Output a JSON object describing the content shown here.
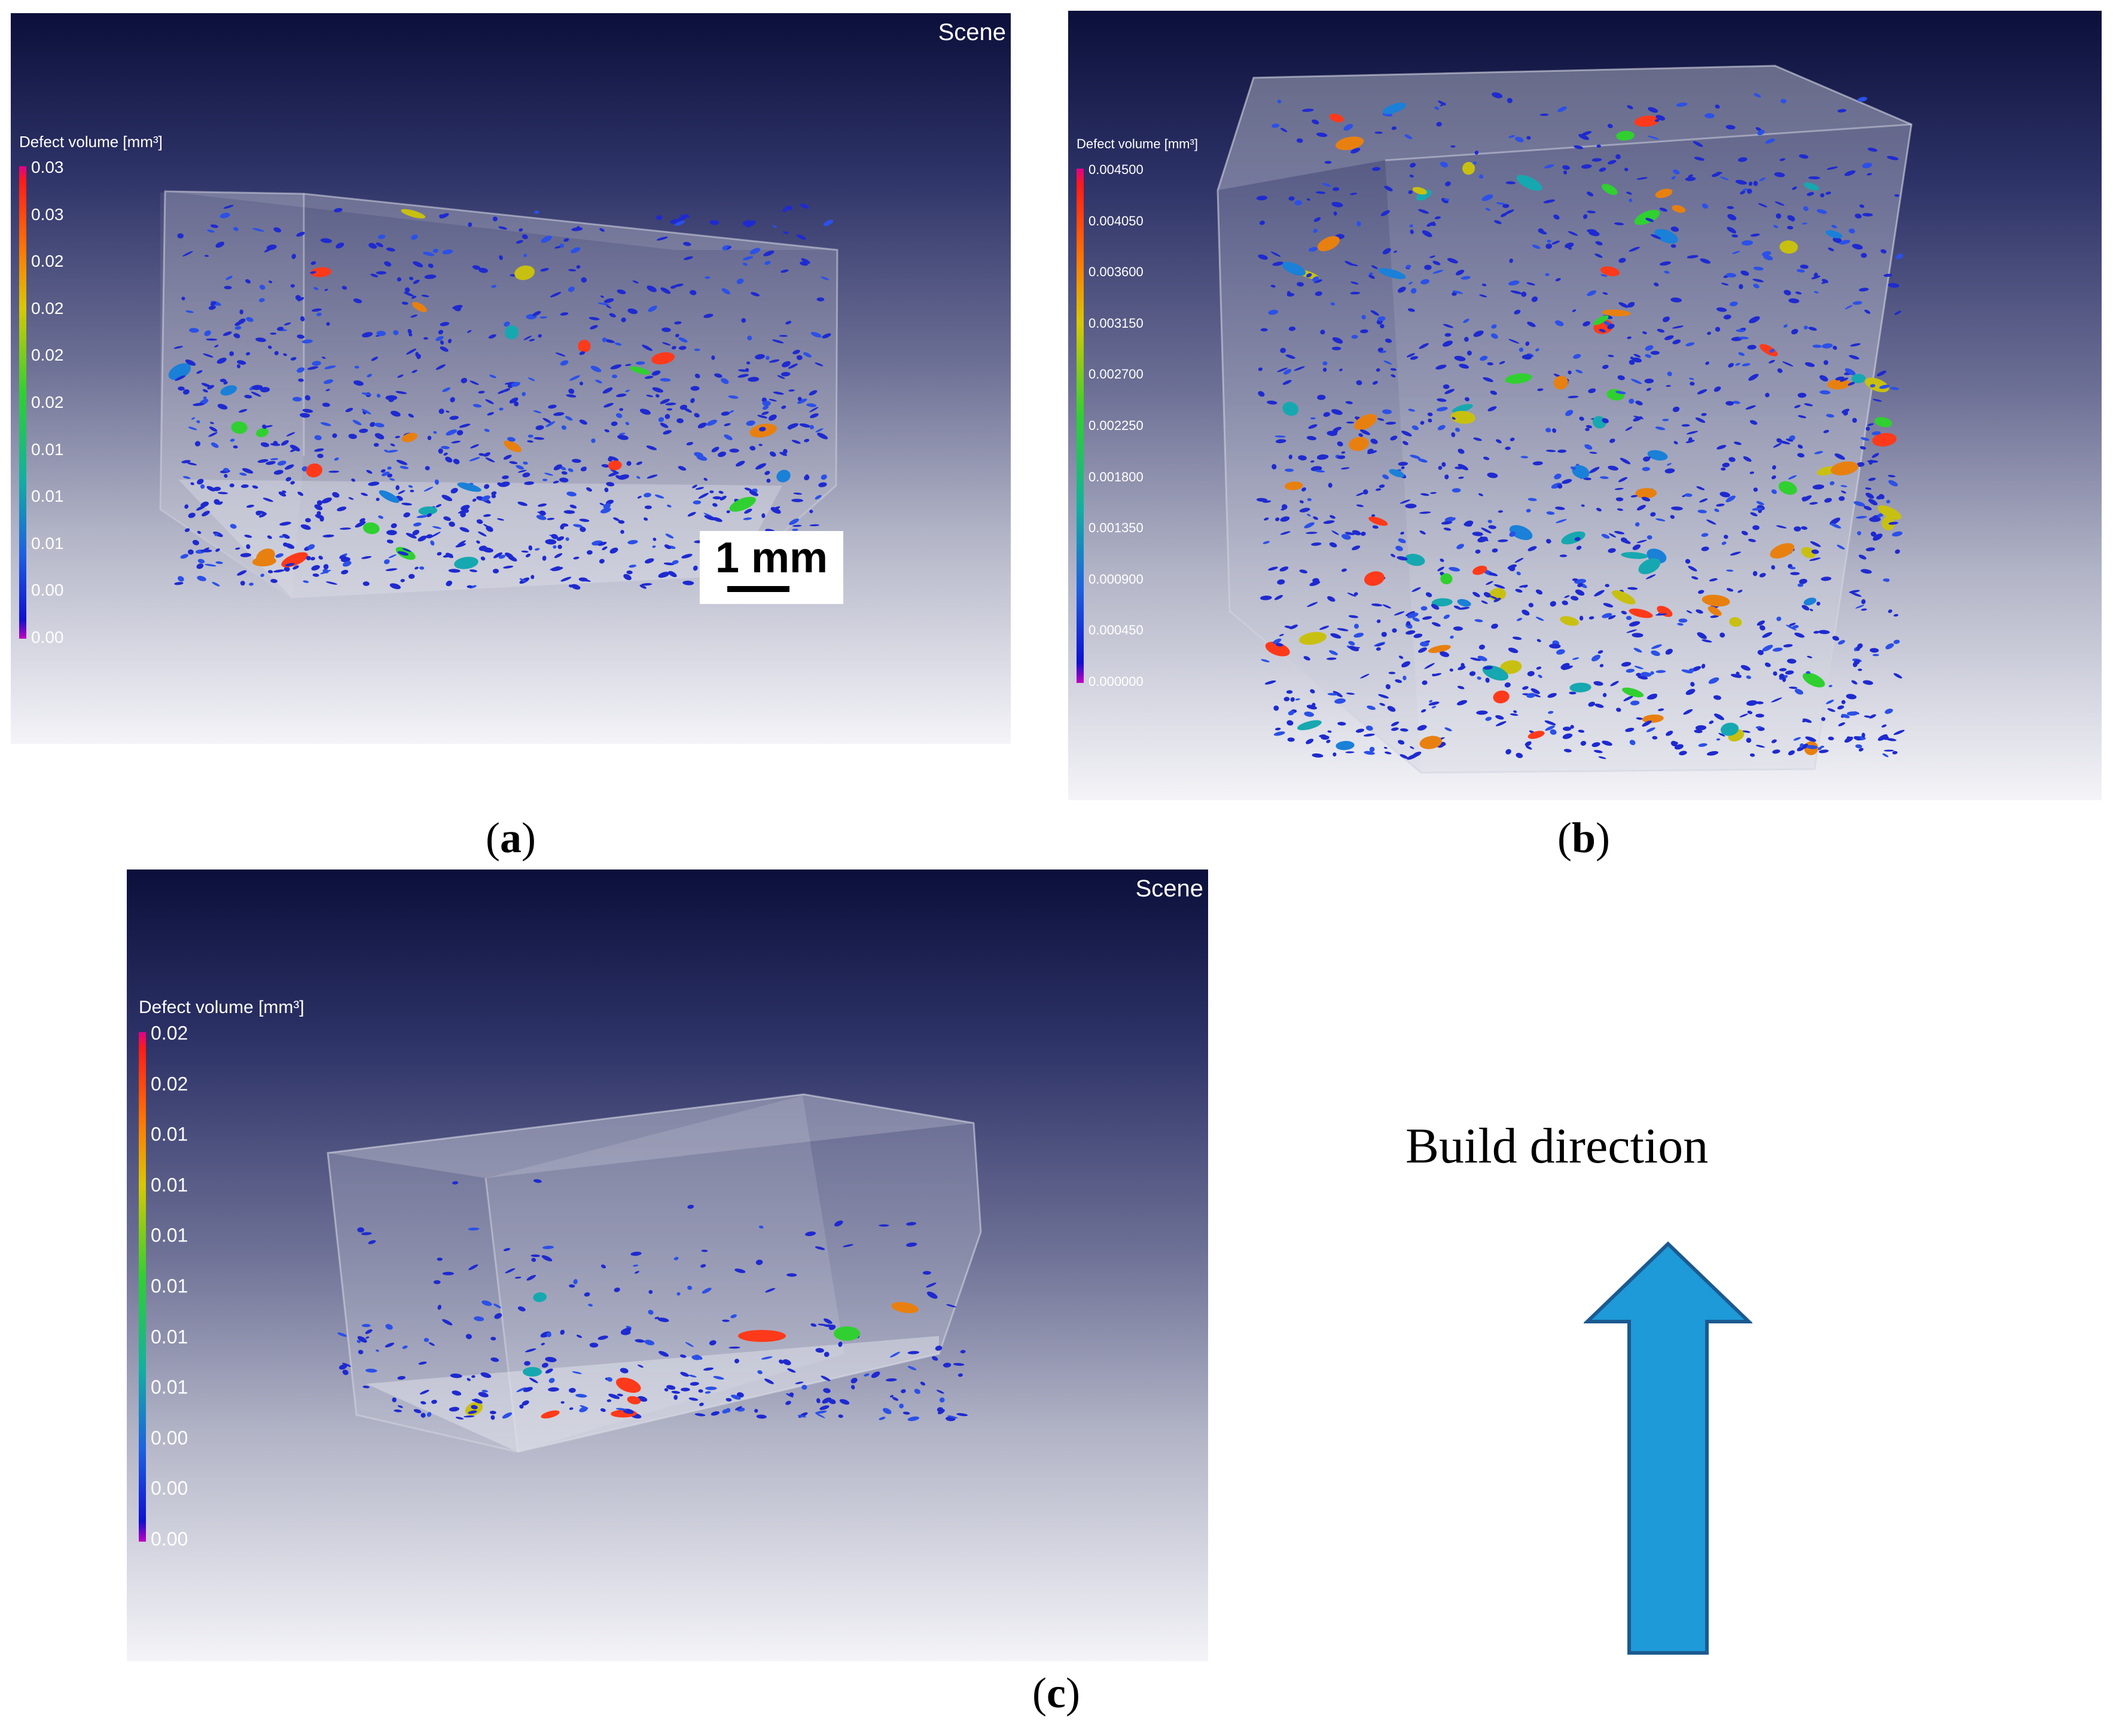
{
  "panels": {
    "a": {
      "scene_label": "Scene",
      "legend_title": "Defect volume [mm³]",
      "legend_ticks": [
        "0.03",
        "0.03",
        "0.02",
        "0.02",
        "0.02",
        "0.02",
        "0.01",
        "0.01",
        "0.01",
        "0.00",
        "0.00"
      ],
      "scale_bar_label": "1 mm",
      "caption_letter": "a"
    },
    "b": {
      "legend_title": "Defect volume [mm³]",
      "legend_ticks": [
        "0.004500",
        "0.004050",
        "0.003600",
        "0.003150",
        "0.002700",
        "0.002250",
        "0.001800",
        "0.001350",
        "0.000900",
        "0.000450",
        "0.000000"
      ],
      "caption_letter": "b"
    },
    "c": {
      "scene_label": "Scene",
      "legend_title": "Defect volume [mm³]",
      "legend_ticks": [
        "0.02",
        "0.02",
        "0.01",
        "0.01",
        "0.01",
        "0.01",
        "0.01",
        "0.01",
        "0.00",
        "0.00",
        "0.00"
      ],
      "caption_letter": "c"
    }
  },
  "build_direction": {
    "label": "Build direction",
    "arrow_color": "#1e9ad8",
    "arrow_outline": "#1b5a90"
  },
  "colors": {
    "background_top": "#0b0f3a",
    "background_bottom": "#f4f4f8",
    "defect_low": "#1e2ad0",
    "defect_mid": "#30d030",
    "defect_high": "#ff3a1a"
  }
}
